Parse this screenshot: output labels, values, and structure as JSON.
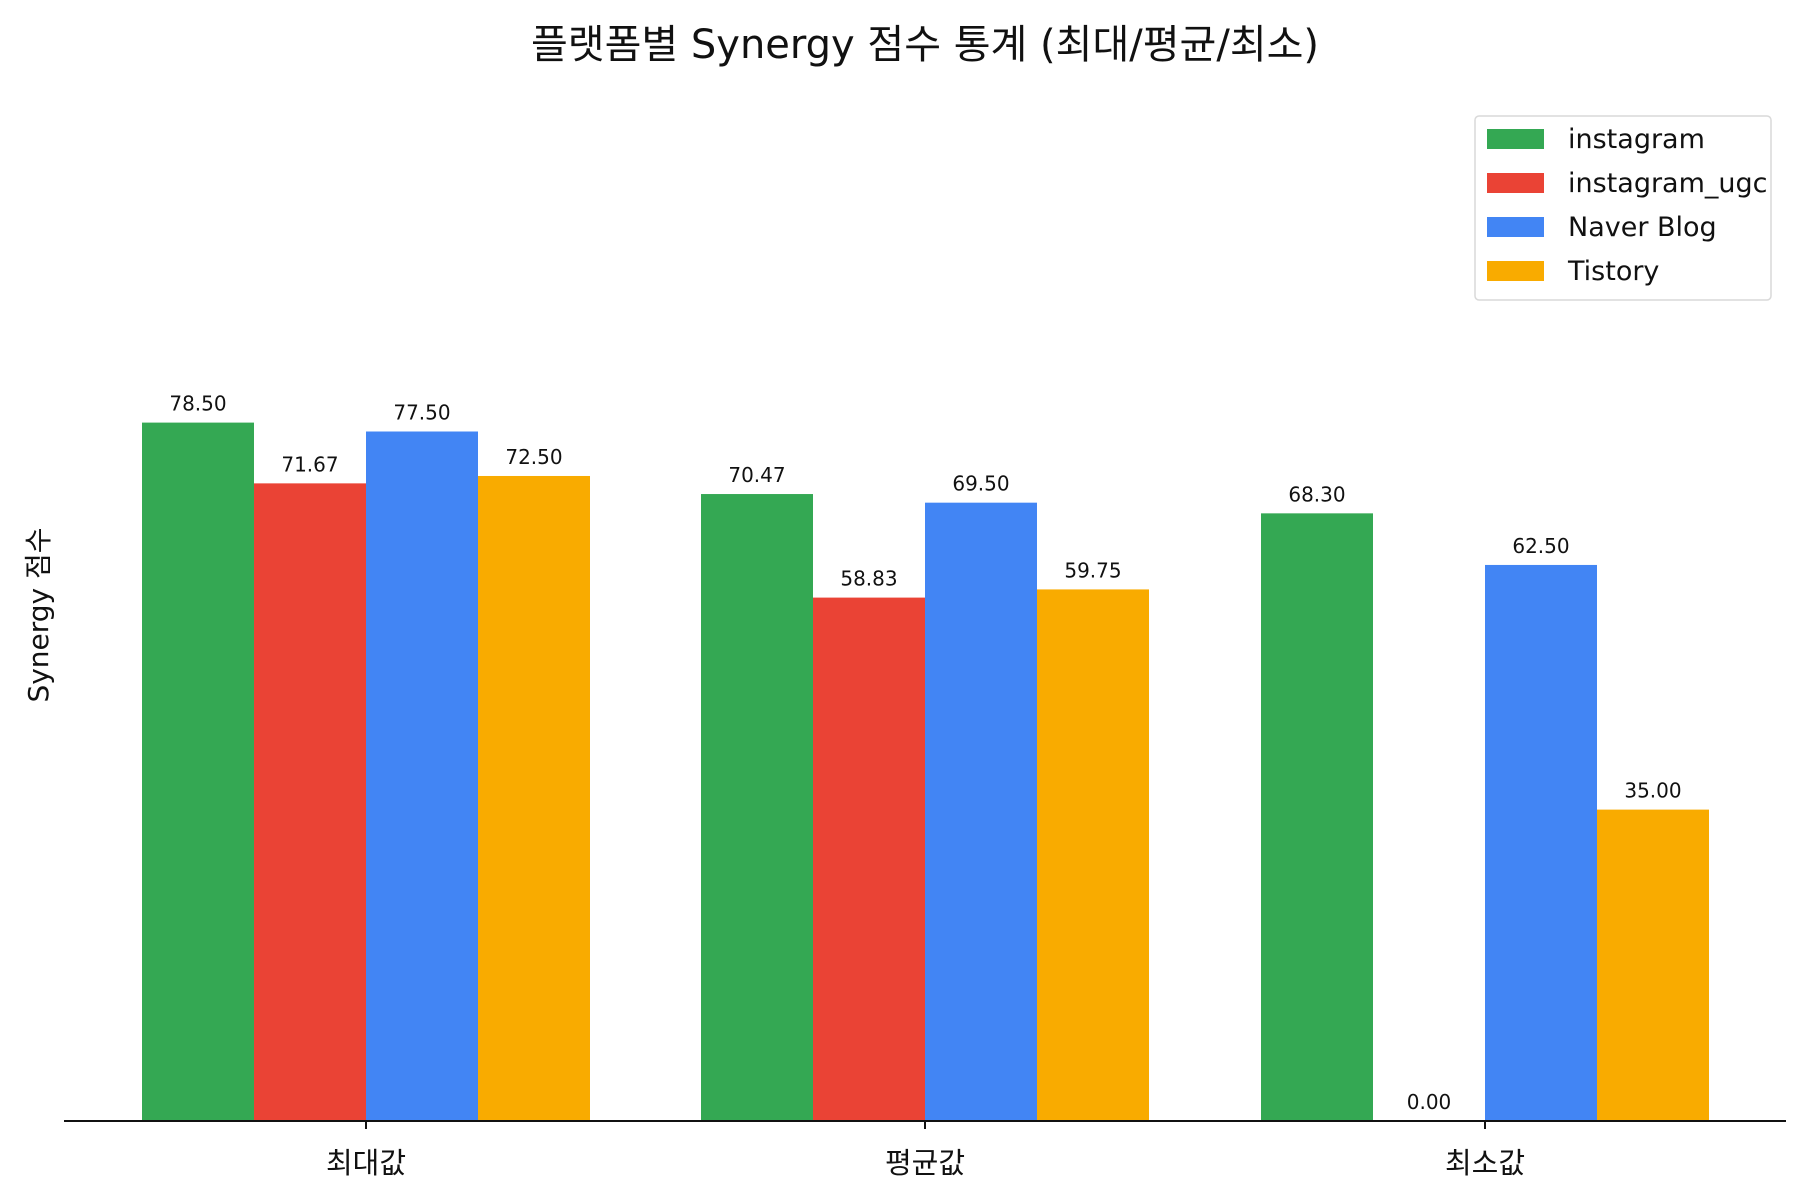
{
  "chart_data": {
    "type": "bar",
    "title": "플랫폼별 Synergy 점수 통계 (최대/평균/최소)",
    "xlabel": "",
    "ylabel": "Synergy 점수",
    "categories": [
      "최대값",
      "평균값",
      "최소값"
    ],
    "series": [
      {
        "name": "instagram",
        "color": "#34a853",
        "values": [
          78.5,
          70.47,
          68.3
        ]
      },
      {
        "name": "instagram_ugc",
        "color": "#ea4335",
        "values": [
          71.67,
          58.83,
          0.0
        ]
      },
      {
        "name": "Naver Blog",
        "color": "#4285f4",
        "values": [
          77.5,
          69.5,
          62.5
        ]
      },
      {
        "name": "Tistory",
        "color": "#f9ab00",
        "values": [
          72.5,
          59.75,
          35.0
        ]
      }
    ],
    "ylim": [
      0,
      126
    ],
    "grid": false,
    "legend": "top-right",
    "value_format": "2 decimals"
  }
}
